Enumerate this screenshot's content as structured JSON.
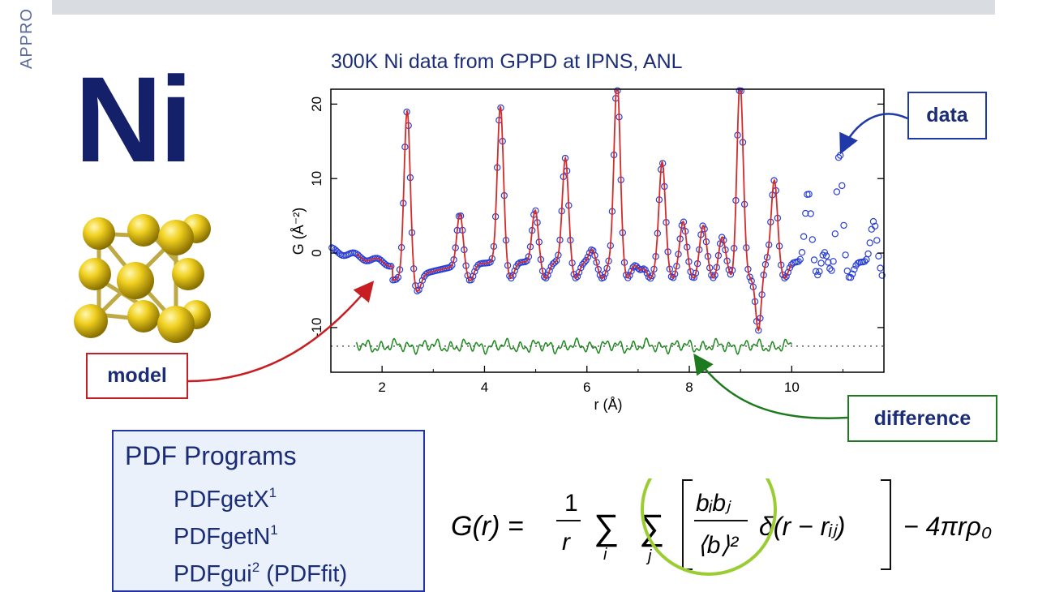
{
  "slide": {
    "side_label": "APPRO",
    "element_title": "Ni"
  },
  "callouts": {
    "data": "data",
    "model": "model",
    "difference": "difference"
  },
  "programs": {
    "heading": "PDF Programs",
    "items": [
      {
        "name": "PDFgetX",
        "sup": "1",
        "suffix": ""
      },
      {
        "name": "PDFgetN",
        "sup": "1",
        "suffix": ""
      },
      {
        "name": "PDFgui",
        "sup": "2",
        "suffix": " (PDFfit)"
      }
    ]
  },
  "formula": {
    "lhs": "G(r) =",
    "frac_num": "1",
    "frac_den": "r",
    "sum_i": "i",
    "sum_j": "j",
    "inner_num": "bᵢbⱼ",
    "inner_den": "⟨b⟩²",
    "delta": "δ(r − rᵢⱼ)",
    "tail": "− 4πrρ₀"
  },
  "colors": {
    "data": "#2a3fd6",
    "model": "#d42a2a",
    "difference": "#1f8a1f",
    "highlight_circle": "#9acd32",
    "title": "#1c2d78"
  },
  "chart_data": {
    "type": "line",
    "title": "300K Ni data from GPPD at IPNS, ANL",
    "xlabel": "r (Å)",
    "ylabel": "G (Å⁻²)",
    "xlim": [
      1,
      11.8
    ],
    "ylim": [
      -16,
      22
    ],
    "xticks": [
      2,
      4,
      6,
      8,
      10
    ],
    "yticks": [
      -10,
      0,
      10,
      20
    ],
    "grid": false,
    "peaks": [
      {
        "r": 2.49,
        "height": 20
      },
      {
        "r": 3.52,
        "height": 4.5
      },
      {
        "r": 4.31,
        "height": 18.5
      },
      {
        "r": 4.99,
        "height": 4.5
      },
      {
        "r": 5.58,
        "height": 11.5
      },
      {
        "r": 6.1,
        "height": -0.8
      },
      {
        "r": 6.59,
        "height": 22
      },
      {
        "r": 7.04,
        "height": -3.5
      },
      {
        "r": 7.47,
        "height": 11
      },
      {
        "r": 7.88,
        "height": 3
      },
      {
        "r": 8.27,
        "height": 2.5
      },
      {
        "r": 8.64,
        "height": 1
      },
      {
        "r": 8.99,
        "height": 22
      },
      {
        "r": 9.66,
        "height": 8.5
      },
      {
        "r": 10.32,
        "height": 7
      },
      {
        "r": 10.62,
        "height": -0.5
      },
      {
        "r": 10.93,
        "height": 13
      },
      {
        "r": 11.6,
        "height": 3
      }
    ],
    "model_range": [
      1.5,
      10
    ],
    "difference_offset": -12.5,
    "series": [
      {
        "name": "data",
        "marker": "circle"
      },
      {
        "name": "model",
        "marker": "line"
      },
      {
        "name": "difference",
        "marker": "line"
      }
    ]
  }
}
